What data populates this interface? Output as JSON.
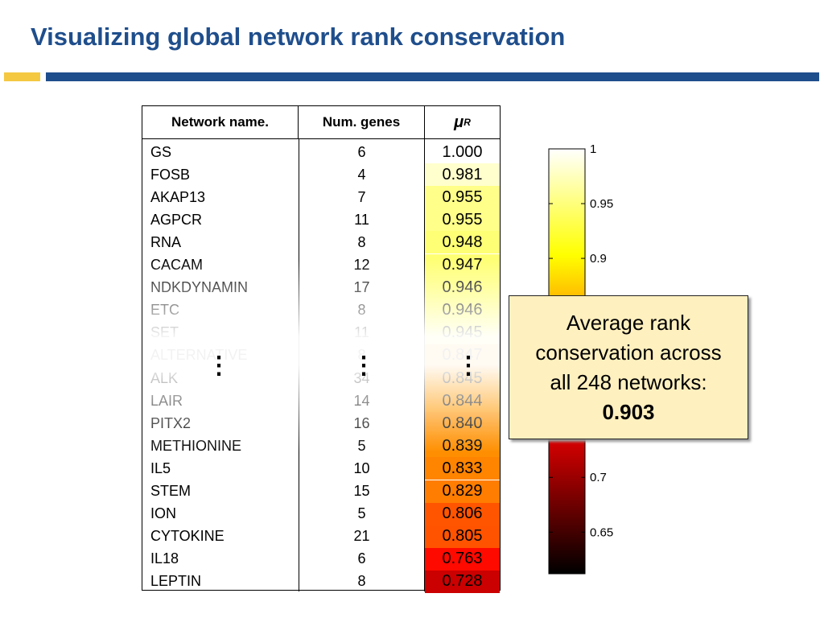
{
  "title": "Visualizing global network rank conservation",
  "table": {
    "header": [
      "Network name.",
      "Num. genes"
    ],
    "mu_symbol": "μ",
    "mu_sub": "R",
    "rows": [
      [
        "GS",
        6,
        "1.000"
      ],
      [
        "FOSB",
        4,
        "0.981"
      ],
      [
        "AKAP13",
        7,
        "0.955"
      ],
      [
        "AGPCR",
        11,
        "0.955"
      ],
      [
        "RNA",
        8,
        "0.948"
      ],
      [
        "CACAM",
        12,
        "0.947"
      ],
      [
        "NDKDYNAMIN",
        17,
        "0.946"
      ],
      [
        "ETC",
        8,
        "0.946"
      ],
      [
        "SET",
        11,
        "0.945"
      ],
      [
        "ALTERNATIVE",
        8,
        "0.847"
      ],
      [
        "ALK",
        34,
        "0.845"
      ],
      [
        "LAIR",
        14,
        "0.844"
      ],
      [
        "PITX2",
        16,
        "0.840"
      ],
      [
        "METHIONINE",
        5,
        "0.839"
      ],
      [
        "IL5",
        10,
        "0.833"
      ],
      [
        "STEM",
        15,
        "0.829"
      ],
      [
        "ION",
        5,
        "0.806"
      ],
      [
        "CYTOKINE",
        21,
        "0.805"
      ],
      [
        "IL18",
        6,
        "0.763"
      ],
      [
        "LEPTIN",
        8,
        "0.728"
      ]
    ],
    "ellipsis": "⋮"
  },
  "colorbar": {
    "lim": [
      0.612,
      1
    ],
    "ticks": [
      1,
      0.95,
      0.9,
      0.7,
      0.65
    ]
  },
  "callout": {
    "text": "Average rank conservation across all 248 networks:",
    "value": "0.903"
  }
}
